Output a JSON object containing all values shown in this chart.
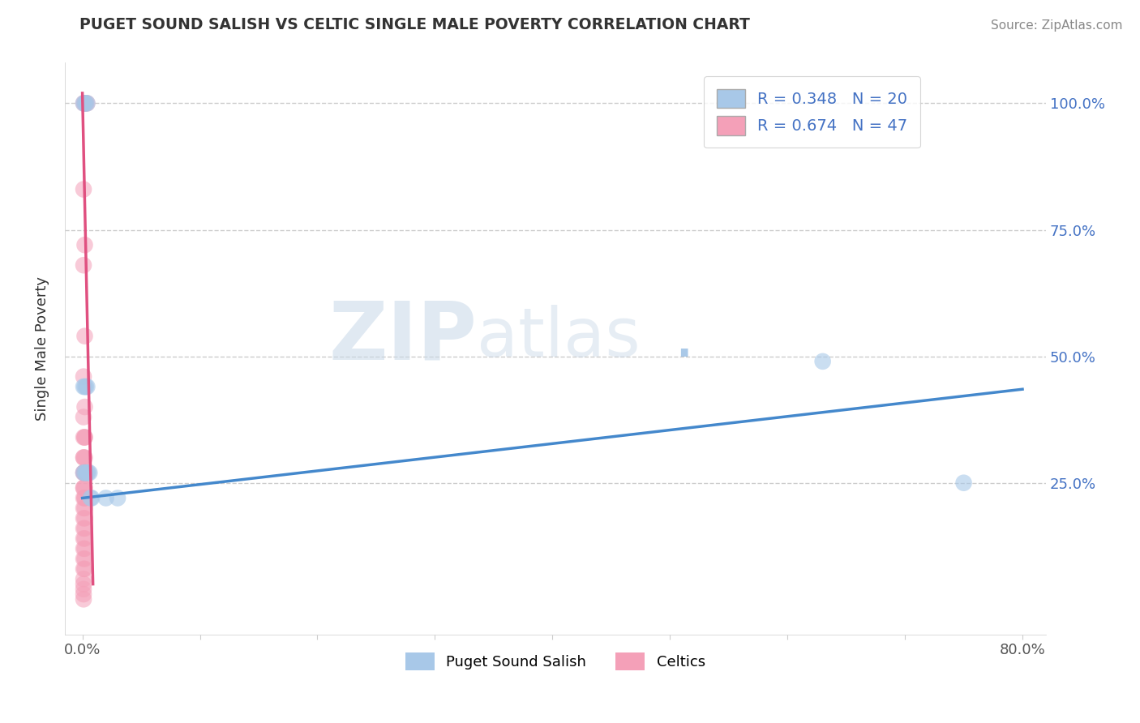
{
  "title": "PUGET SOUND SALISH VS CELTIC SINGLE MALE POVERTY CORRELATION CHART",
  "source_text": "Source: ZipAtlas.com",
  "ylabel": "Single Male Poverty",
  "watermark_zip": "ZIP",
  "watermark_atlas": "atlas",
  "watermark_dot": ".",
  "legend_label1": "R = 0.348   N = 20",
  "legend_label2": "R = 0.674   N = 47",
  "legend_bottom1": "Puget Sound Salish",
  "legend_bottom2": "Celtics",
  "blue_color": "#a8c8e8",
  "pink_color": "#f4a0b8",
  "blue_line_color": "#4488cc",
  "pink_line_color": "#e05080",
  "blue_scatter": [
    [
      0.001,
      1.0
    ],
    [
      0.002,
      1.0
    ],
    [
      0.003,
      1.0
    ],
    [
      0.004,
      1.0
    ],
    [
      0.001,
      0.44
    ],
    [
      0.002,
      0.44
    ],
    [
      0.003,
      0.44
    ],
    [
      0.004,
      0.44
    ],
    [
      0.001,
      0.27
    ],
    [
      0.002,
      0.27
    ],
    [
      0.003,
      0.27
    ],
    [
      0.004,
      0.27
    ],
    [
      0.005,
      0.27
    ],
    [
      0.006,
      0.27
    ],
    [
      0.007,
      0.22
    ],
    [
      0.008,
      0.22
    ],
    [
      0.02,
      0.22
    ],
    [
      0.03,
      0.22
    ],
    [
      0.63,
      0.49
    ],
    [
      0.75,
      0.25
    ]
  ],
  "pink_scatter": [
    [
      0.001,
      1.0
    ],
    [
      0.002,
      1.0
    ],
    [
      0.003,
      1.0
    ],
    [
      0.004,
      1.0
    ],
    [
      0.001,
      0.83
    ],
    [
      0.002,
      0.72
    ],
    [
      0.001,
      0.68
    ],
    [
      0.002,
      0.54
    ],
    [
      0.001,
      0.46
    ],
    [
      0.002,
      0.4
    ],
    [
      0.001,
      0.38
    ],
    [
      0.002,
      0.34
    ],
    [
      0.001,
      0.34
    ],
    [
      0.002,
      0.34
    ],
    [
      0.001,
      0.3
    ],
    [
      0.002,
      0.3
    ],
    [
      0.001,
      0.3
    ],
    [
      0.002,
      0.27
    ],
    [
      0.001,
      0.27
    ],
    [
      0.002,
      0.27
    ],
    [
      0.001,
      0.27
    ],
    [
      0.002,
      0.27
    ],
    [
      0.001,
      0.24
    ],
    [
      0.002,
      0.24
    ],
    [
      0.001,
      0.24
    ],
    [
      0.002,
      0.22
    ],
    [
      0.001,
      0.22
    ],
    [
      0.002,
      0.22
    ],
    [
      0.001,
      0.2
    ],
    [
      0.002,
      0.2
    ],
    [
      0.001,
      0.18
    ],
    [
      0.002,
      0.18
    ],
    [
      0.001,
      0.16
    ],
    [
      0.002,
      0.16
    ],
    [
      0.001,
      0.14
    ],
    [
      0.002,
      0.14
    ],
    [
      0.001,
      0.12
    ],
    [
      0.002,
      0.12
    ],
    [
      0.001,
      0.1
    ],
    [
      0.002,
      0.1
    ],
    [
      0.001,
      0.08
    ],
    [
      0.002,
      0.08
    ],
    [
      0.001,
      0.06
    ],
    [
      0.001,
      0.05
    ],
    [
      0.001,
      0.04
    ],
    [
      0.001,
      0.03
    ],
    [
      0.001,
      0.02
    ]
  ],
  "xlim": [
    -0.015,
    0.82
  ],
  "ylim": [
    -0.05,
    1.08
  ],
  "xticks": [
    0.0,
    0.1,
    0.2,
    0.3,
    0.4,
    0.5,
    0.6,
    0.7,
    0.8
  ],
  "xtick_labels_show": [
    "0.0%",
    "",
    "",
    "",
    "",
    "",
    "",
    "",
    "80.0%"
  ],
  "ytick_vals": [
    0.25,
    0.5,
    0.75,
    1.0
  ],
  "ytick_labels": [
    "25.0%",
    "50.0%",
    "75.0%",
    "100.0%"
  ],
  "blue_trendline_x": [
    0.0,
    0.8
  ],
  "blue_trendline_y": [
    0.22,
    0.435
  ],
  "pink_trendline_x": [
    0.0,
    0.009
  ],
  "pink_trendline_y": [
    1.02,
    0.05
  ]
}
